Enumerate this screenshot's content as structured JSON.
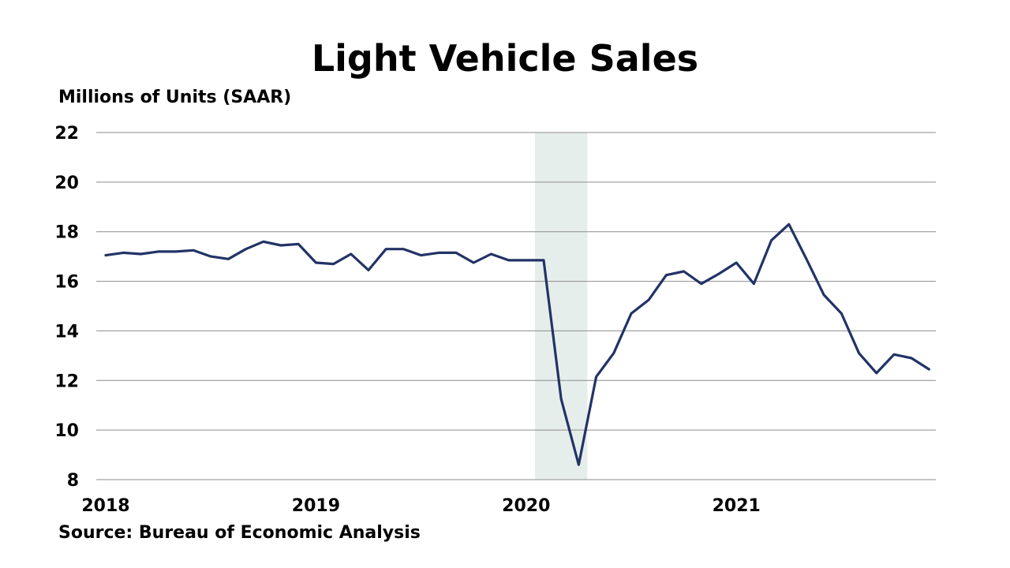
{
  "chart_data": {
    "type": "line",
    "title": "Light Vehicle Sales",
    "ylabel": "Millions of Units (SAAR)",
    "xlabel": "",
    "source": "Source: Bureau of Economic Analysis",
    "ylim": [
      8,
      22
    ],
    "yticks": [
      8,
      10,
      12,
      14,
      16,
      18,
      20,
      22
    ],
    "xlim": [
      "2018-01",
      "2021-12"
    ],
    "xticks": [
      "2018",
      "2019",
      "2020",
      "2021"
    ],
    "grid": true,
    "legend": "none",
    "recession_shading": {
      "start": "2020-02",
      "end": "2020-04",
      "color": "#e6eeec"
    },
    "series": [
      {
        "color": "#223366",
        "x": [
          "2018-01",
          "2018-02",
          "2018-03",
          "2018-04",
          "2018-05",
          "2018-06",
          "2018-07",
          "2018-08",
          "2018-09",
          "2018-10",
          "2018-11",
          "2018-12",
          "2019-01",
          "2019-02",
          "2019-03",
          "2019-04",
          "2019-05",
          "2019-06",
          "2019-07",
          "2019-08",
          "2019-09",
          "2019-10",
          "2019-11",
          "2019-12",
          "2020-01",
          "2020-02",
          "2020-03",
          "2020-04",
          "2020-05",
          "2020-06",
          "2020-07",
          "2020-08",
          "2020-09",
          "2020-10",
          "2020-11",
          "2020-12",
          "2021-01",
          "2021-02",
          "2021-03",
          "2021-04",
          "2021-05",
          "2021-06",
          "2021-07",
          "2021-08",
          "2021-09",
          "2021-10",
          "2021-11",
          "2021-12"
        ],
        "values": [
          17.05,
          17.15,
          17.1,
          17.2,
          17.2,
          17.25,
          17.0,
          16.9,
          17.3,
          17.6,
          17.45,
          17.5,
          16.75,
          16.7,
          17.1,
          16.45,
          17.3,
          17.3,
          17.05,
          17.15,
          17.15,
          16.75,
          17.1,
          16.85,
          16.85,
          16.85,
          11.25,
          8.6,
          12.15,
          13.1,
          14.7,
          15.25,
          16.25,
          16.4,
          15.9,
          16.3,
          16.75,
          15.9,
          17.65,
          18.3,
          16.9,
          15.45,
          14.7,
          13.1,
          12.3,
          13.05,
          12.9,
          12.45
        ]
      }
    ]
  }
}
